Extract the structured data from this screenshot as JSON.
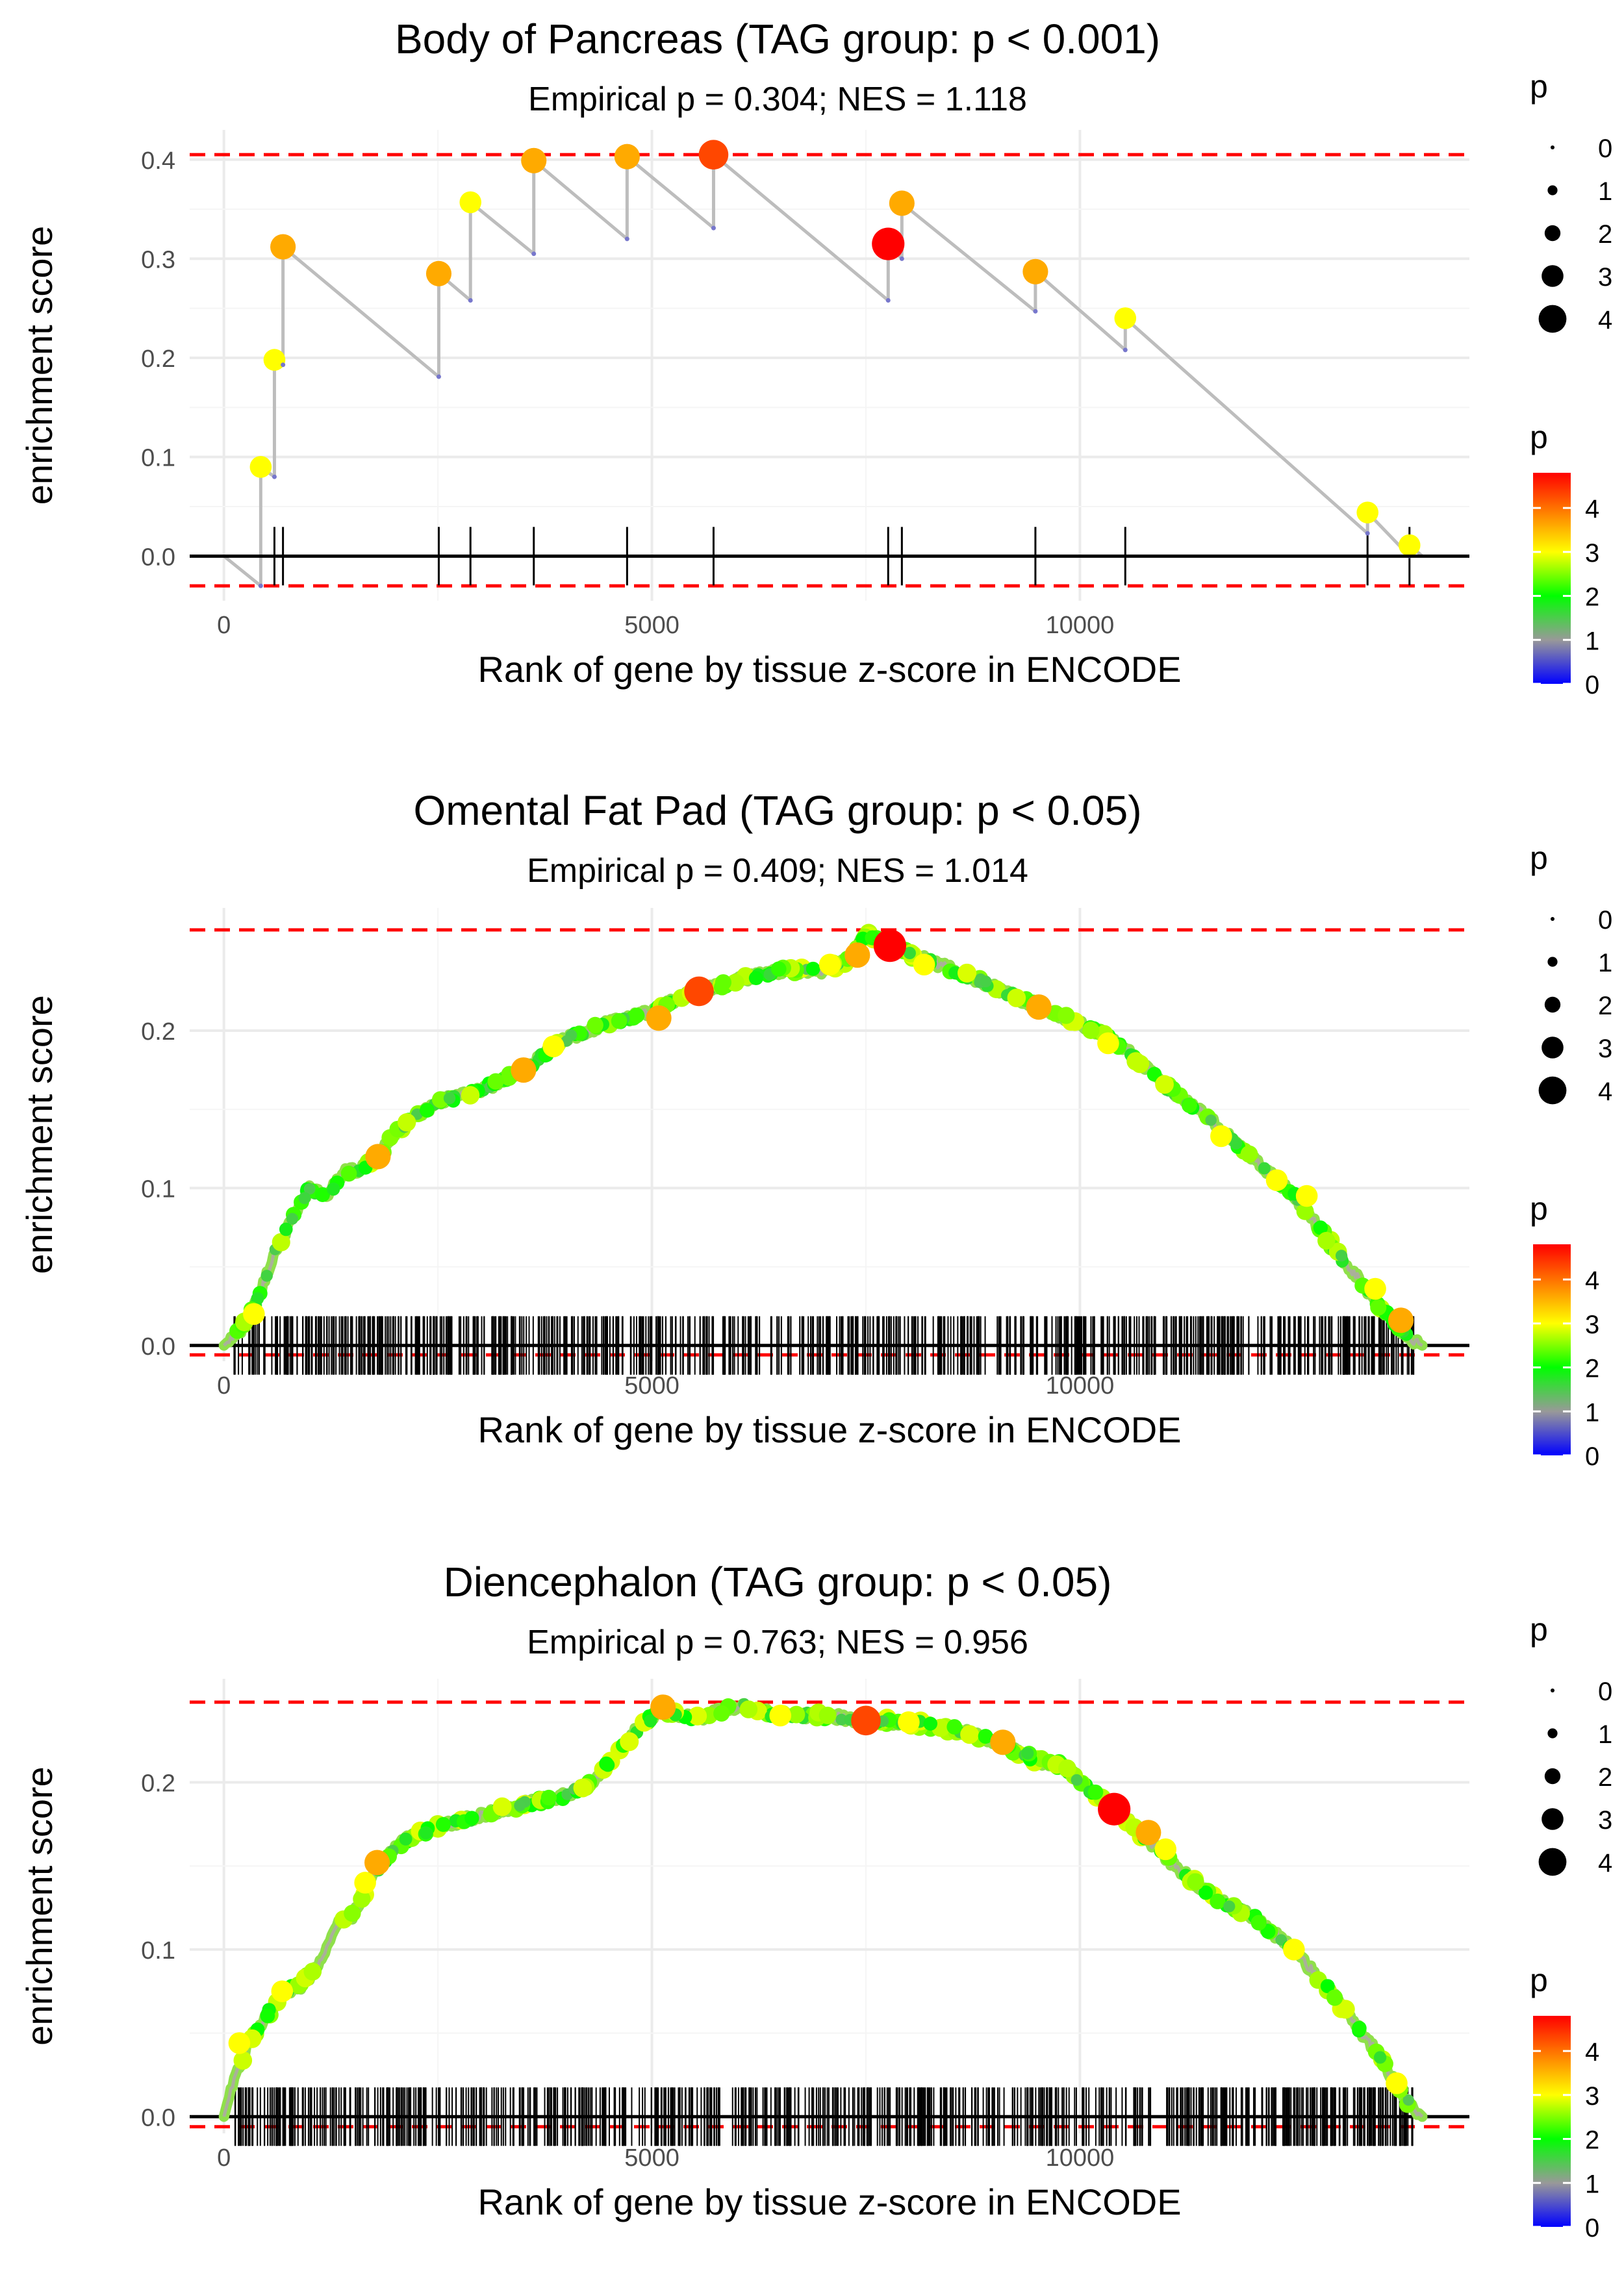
{
  "chart_data": [
    {
      "type": "line",
      "title": "Body of Pancreas (TAG group: p < 0.001)",
      "subtitle": "Empirical p = 0.304; NES = 1.118",
      "xlabel": "Rank of gene by tissue z-score in ENCODE",
      "ylabel": "enrichment score",
      "xlim": [
        -400,
        14550
      ],
      "ylim": [
        -0.045,
        0.43
      ],
      "xticks": [
        0,
        5000,
        10000
      ],
      "xtick_labels": [
        "0",
        "5000",
        "10000"
      ],
      "yticks": [
        0.0,
        0.1,
        0.2,
        0.3,
        0.4
      ],
      "ytick_labels": [
        "0.0",
        "0.1",
        "0.2",
        "0.3",
        "0.4"
      ],
      "grid": true,
      "max_es_line": 0.405,
      "min_es_line": -0.03,
      "mode": "sparse",
      "n_genes": 14000,
      "start": [
        0,
        0
      ],
      "steps": [
        {
          "x": 430,
          "low": -0.03,
          "high": 0.09,
          "p": 3.0
        },
        {
          "x": 590,
          "low": 0.08,
          "high": 0.198,
          "p": 3.0
        },
        {
          "x": 690,
          "low": 0.193,
          "high": 0.312,
          "p": 3.6
        },
        {
          "x": 2510,
          "low": 0.181,
          "high": 0.285,
          "p": 3.6
        },
        {
          "x": 2880,
          "low": 0.258,
          "high": 0.357,
          "p": 3.0
        },
        {
          "x": 3620,
          "low": 0.305,
          "high": 0.399,
          "p": 3.6
        },
        {
          "x": 4710,
          "low": 0.32,
          "high": 0.403,
          "p": 3.6
        },
        {
          "x": 5720,
          "low": 0.331,
          "high": 0.405,
          "p": 4.3
        },
        {
          "x": 7760,
          "low": 0.258,
          "high": 0.315,
          "p": 4.8
        },
        {
          "x": 7920,
          "low": 0.3,
          "high": 0.356,
          "p": 3.6
        },
        {
          "x": 9480,
          "low": 0.247,
          "high": 0.287,
          "p": 3.6
        },
        {
          "x": 10530,
          "low": 0.208,
          "high": 0.24,
          "p": 3.0
        },
        {
          "x": 13360,
          "low": 0.023,
          "high": 0.044,
          "p": 3.0
        },
        {
          "x": 13850,
          "low": 0.0,
          "high": 0.011,
          "p": 3.0
        }
      ],
      "hits_markers": true
    },
    {
      "type": "line",
      "title": "Omental Fat Pad (TAG group: p < 0.05)",
      "subtitle": "Empirical p = 0.409; NES = 1.014",
      "xlabel": "Rank of gene by tissue z-score in ENCODE",
      "ylabel": "enrichment score",
      "xlim": [
        -400,
        14550
      ],
      "ylim": [
        -0.01,
        0.278
      ],
      "xticks": [
        0,
        5000,
        10000
      ],
      "xtick_labels": [
        "0",
        "5000",
        "10000"
      ],
      "yticks": [
        0.0,
        0.1,
        0.2
      ],
      "ytick_labels": [
        "0.0",
        "0.1",
        "0.2"
      ],
      "grid": true,
      "max_es_line": 0.264,
      "min_es_line": -0.006,
      "mode": "dense",
      "n_genes": 14000,
      "n_hits": 700,
      "rug_range": [
        100,
        13900
      ],
      "curve": [
        [
          0,
          0
        ],
        [
          200,
          0.01
        ],
        [
          400,
          0.03
        ],
        [
          600,
          0.06
        ],
        [
          800,
          0.08
        ],
        [
          1000,
          0.1
        ],
        [
          1200,
          0.095
        ],
        [
          1400,
          0.11
        ],
        [
          1600,
          0.112
        ],
        [
          1800,
          0.12
        ],
        [
          2000,
          0.135
        ],
        [
          2500,
          0.155
        ],
        [
          3000,
          0.162
        ],
        [
          3500,
          0.175
        ],
        [
          4000,
          0.195
        ],
        [
          4500,
          0.205
        ],
        [
          5000,
          0.212
        ],
        [
          5500,
          0.225
        ],
        [
          6000,
          0.232
        ],
        [
          6500,
          0.238
        ],
        [
          7000,
          0.238
        ],
        [
          7300,
          0.245
        ],
        [
          7500,
          0.262
        ],
        [
          7700,
          0.255
        ],
        [
          8200,
          0.245
        ],
        [
          8700,
          0.235
        ],
        [
          9500,
          0.215
        ],
        [
          10000,
          0.205
        ],
        [
          10500,
          0.19
        ],
        [
          11000,
          0.165
        ],
        [
          11500,
          0.145
        ],
        [
          12000,
          0.12
        ],
        [
          12500,
          0.095
        ],
        [
          13000,
          0.06
        ],
        [
          13500,
          0.025
        ],
        [
          13800,
          0.006
        ],
        [
          14000,
          0
        ]
      ],
      "highlights": [
        {
          "x": 350,
          "y": 0.02,
          "p": 3.0
        },
        {
          "x": 1800,
          "y": 0.12,
          "p": 3.6
        },
        {
          "x": 3500,
          "y": 0.175,
          "p": 3.6
        },
        {
          "x": 3850,
          "y": 0.19,
          "p": 3.0
        },
        {
          "x": 5080,
          "y": 0.208,
          "p": 3.6
        },
        {
          "x": 5550,
          "y": 0.225,
          "p": 4.3
        },
        {
          "x": 7080,
          "y": 0.242,
          "p": 3.0
        },
        {
          "x": 7400,
          "y": 0.248,
          "p": 3.6
        },
        {
          "x": 7780,
          "y": 0.254,
          "p": 4.8
        },
        {
          "x": 8180,
          "y": 0.242,
          "p": 3.0
        },
        {
          "x": 9520,
          "y": 0.215,
          "p": 3.6
        },
        {
          "x": 10330,
          "y": 0.192,
          "p": 3.0
        },
        {
          "x": 11650,
          "y": 0.133,
          "p": 3.0
        },
        {
          "x": 12300,
          "y": 0.105,
          "p": 3.0
        },
        {
          "x": 12650,
          "y": 0.095,
          "p": 3.0
        },
        {
          "x": 13450,
          "y": 0.036,
          "p": 3.0
        },
        {
          "x": 13750,
          "y": 0.016,
          "p": 3.6
        }
      ]
    },
    {
      "type": "line",
      "title": "Diencephalon (TAG group: p < 0.05)",
      "subtitle": "Empirical p = 0.763; NES = 0.956",
      "xlabel": "Rank of gene by tissue z-score in ENCODE",
      "ylabel": "enrichment score",
      "xlim": [
        -400,
        14550
      ],
      "ylim": [
        -0.01,
        0.262
      ],
      "xticks": [
        0,
        5000,
        10000
      ],
      "xtick_labels": [
        "0",
        "5000",
        "10000"
      ],
      "yticks": [
        0.0,
        0.1,
        0.2
      ],
      "ytick_labels": [
        "0.0",
        "0.1",
        "0.2"
      ],
      "grid": true,
      "max_es_line": 0.248,
      "min_es_line": -0.006,
      "mode": "dense",
      "n_genes": 14000,
      "n_hits": 700,
      "rug_range": [
        100,
        13900
      ],
      "curve": [
        [
          0,
          0
        ],
        [
          100,
          0.02
        ],
        [
          300,
          0.045
        ],
        [
          500,
          0.06
        ],
        [
          700,
          0.075
        ],
        [
          900,
          0.078
        ],
        [
          1100,
          0.09
        ],
        [
          1300,
          0.115
        ],
        [
          1500,
          0.12
        ],
        [
          1700,
          0.14
        ],
        [
          1900,
          0.155
        ],
        [
          2100,
          0.165
        ],
        [
          2400,
          0.172
        ],
        [
          3000,
          0.18
        ],
        [
          3500,
          0.187
        ],
        [
          4000,
          0.192
        ],
        [
          4300,
          0.2
        ],
        [
          4500,
          0.212
        ],
        [
          4800,
          0.23
        ],
        [
          5100,
          0.244
        ],
        [
          5500,
          0.238
        ],
        [
          6000,
          0.246
        ],
        [
          6500,
          0.24
        ],
        [
          7000,
          0.24
        ],
        [
          7500,
          0.237
        ],
        [
          8000,
          0.236
        ],
        [
          8500,
          0.232
        ],
        [
          9000,
          0.225
        ],
        [
          9500,
          0.213
        ],
        [
          9800,
          0.21
        ],
        [
          10000,
          0.2
        ],
        [
          10500,
          0.18
        ],
        [
          11000,
          0.155
        ],
        [
          11500,
          0.133
        ],
        [
          12000,
          0.12
        ],
        [
          12500,
          0.1
        ],
        [
          13000,
          0.07
        ],
        [
          13500,
          0.036
        ],
        [
          13800,
          0.01
        ],
        [
          14000,
          0
        ]
      ],
      "highlights": [
        {
          "x": 180,
          "y": 0.044,
          "p": 3.0
        },
        {
          "x": 680,
          "y": 0.075,
          "p": 3.0
        },
        {
          "x": 1650,
          "y": 0.14,
          "p": 3.0
        },
        {
          "x": 1790,
          "y": 0.152,
          "p": 3.6
        },
        {
          "x": 5130,
          "y": 0.245,
          "p": 3.6
        },
        {
          "x": 6500,
          "y": 0.24,
          "p": 3.0
        },
        {
          "x": 7500,
          "y": 0.237,
          "p": 4.3
        },
        {
          "x": 8000,
          "y": 0.236,
          "p": 3.0
        },
        {
          "x": 9100,
          "y": 0.224,
          "p": 3.6
        },
        {
          "x": 10400,
          "y": 0.184,
          "p": 4.8
        },
        {
          "x": 10800,
          "y": 0.17,
          "p": 3.6
        },
        {
          "x": 11000,
          "y": 0.16,
          "p": 3.0
        },
        {
          "x": 12500,
          "y": 0.1,
          "p": 3.0
        },
        {
          "x": 13700,
          "y": 0.02,
          "p": 3.0
        }
      ]
    }
  ],
  "legends": [
    {
      "size_title": "p",
      "size_breaks": [
        "0",
        "1",
        "2",
        "3",
        "4"
      ],
      "color_title": "p",
      "color_breaks": [
        "0",
        "1",
        "2",
        "3",
        "4"
      ],
      "color_range": [
        0,
        4.8
      ],
      "colors": [
        "#0000ff",
        "#999999",
        "#00ff00",
        "#ffff00",
        "#ff0000"
      ]
    },
    {
      "size_title": "p",
      "size_breaks": [
        "0",
        "1",
        "2",
        "3",
        "4"
      ],
      "color_title": "p",
      "color_breaks": [
        "0",
        "1",
        "2",
        "3",
        "4"
      ],
      "color_range": [
        0,
        4.8
      ],
      "colors": [
        "#0000ff",
        "#999999",
        "#00ff00",
        "#ffff00",
        "#ff0000"
      ]
    },
    {
      "size_title": "p",
      "size_breaks": [
        "0",
        "1",
        "2",
        "3",
        "4"
      ],
      "color_title": "p",
      "color_breaks": [
        "0",
        "1",
        "2",
        "3",
        "4"
      ],
      "color_range": [
        0,
        4.8
      ],
      "colors": [
        "#0000ff",
        "#999999",
        "#00ff00",
        "#ffff00",
        "#ff0000"
      ]
    }
  ]
}
